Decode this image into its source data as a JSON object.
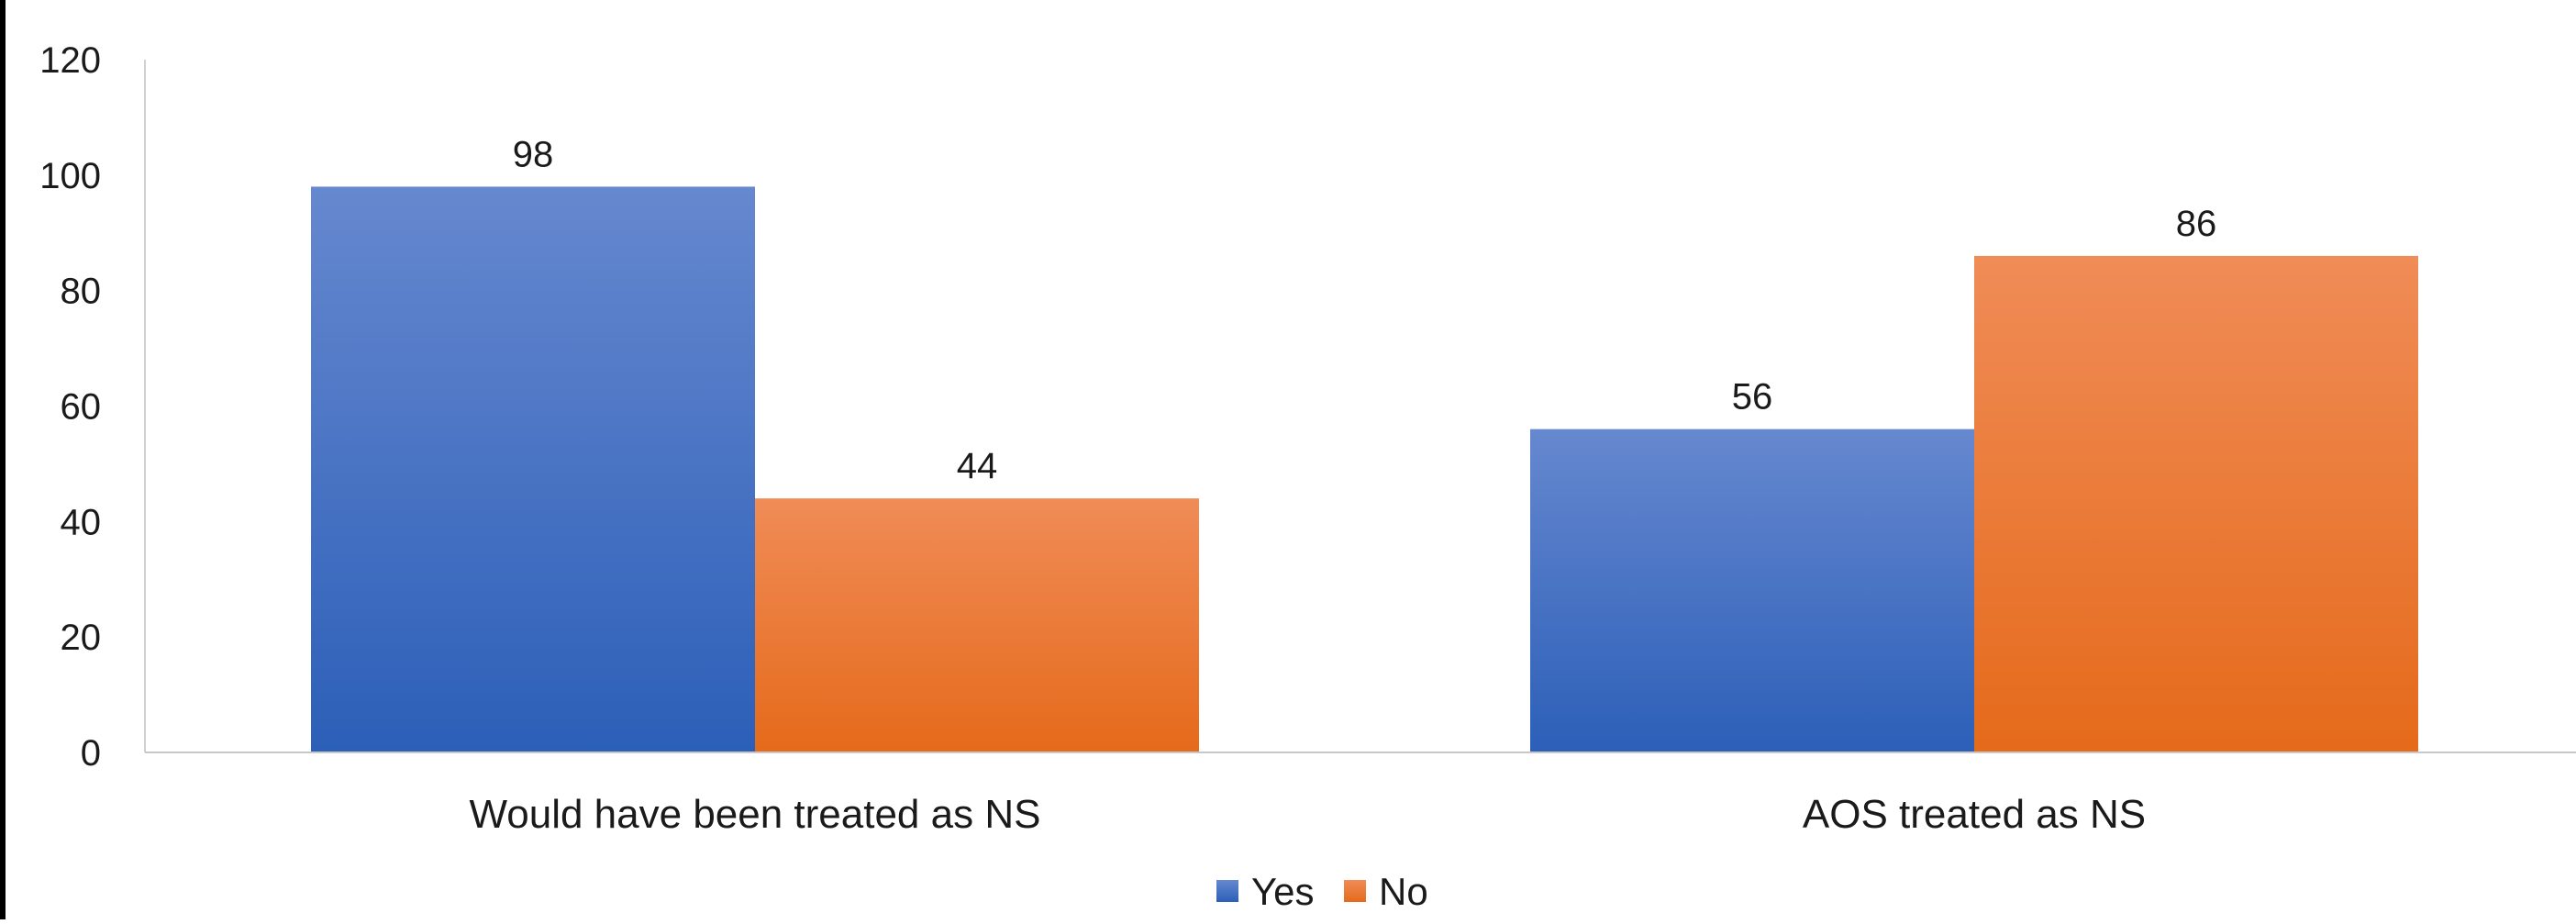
{
  "chart_data": {
    "type": "bar",
    "title": "",
    "categories": [
      "Would have been treated as NS",
      "AOS treated as NS"
    ],
    "series": [
      {
        "name": "Yes",
        "values": [
          98,
          56
        ],
        "color": "#4472C4"
      },
      {
        "name": "No",
        "values": [
          44,
          86
        ],
        "color": "#ED7D31"
      }
    ],
    "ylim": [
      0,
      120
    ],
    "yticks": [
      "0",
      "20",
      "40",
      "60",
      "80",
      "100",
      "120"
    ],
    "data_labels": true,
    "grid": false,
    "legend_position": "bottom"
  },
  "colors": {
    "yes_top": "#6688CF",
    "yes_bottom": "#2C5FB8",
    "no_top": "#F08C57",
    "no_bottom": "#E56A1B"
  }
}
